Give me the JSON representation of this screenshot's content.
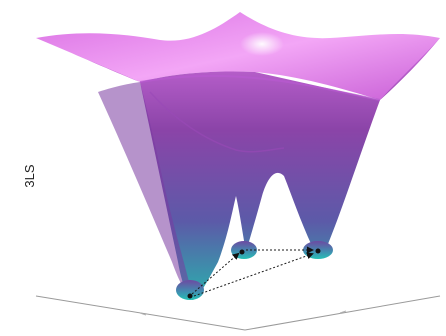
{
  "figure": {
    "z_axis_label": "3LS",
    "colors": {
      "rim": "#e07ae8",
      "body": "#7d3f9e",
      "deep": "#5a4aa0",
      "well": "#2aa7a7",
      "arrow": "#111111"
    }
  }
}
